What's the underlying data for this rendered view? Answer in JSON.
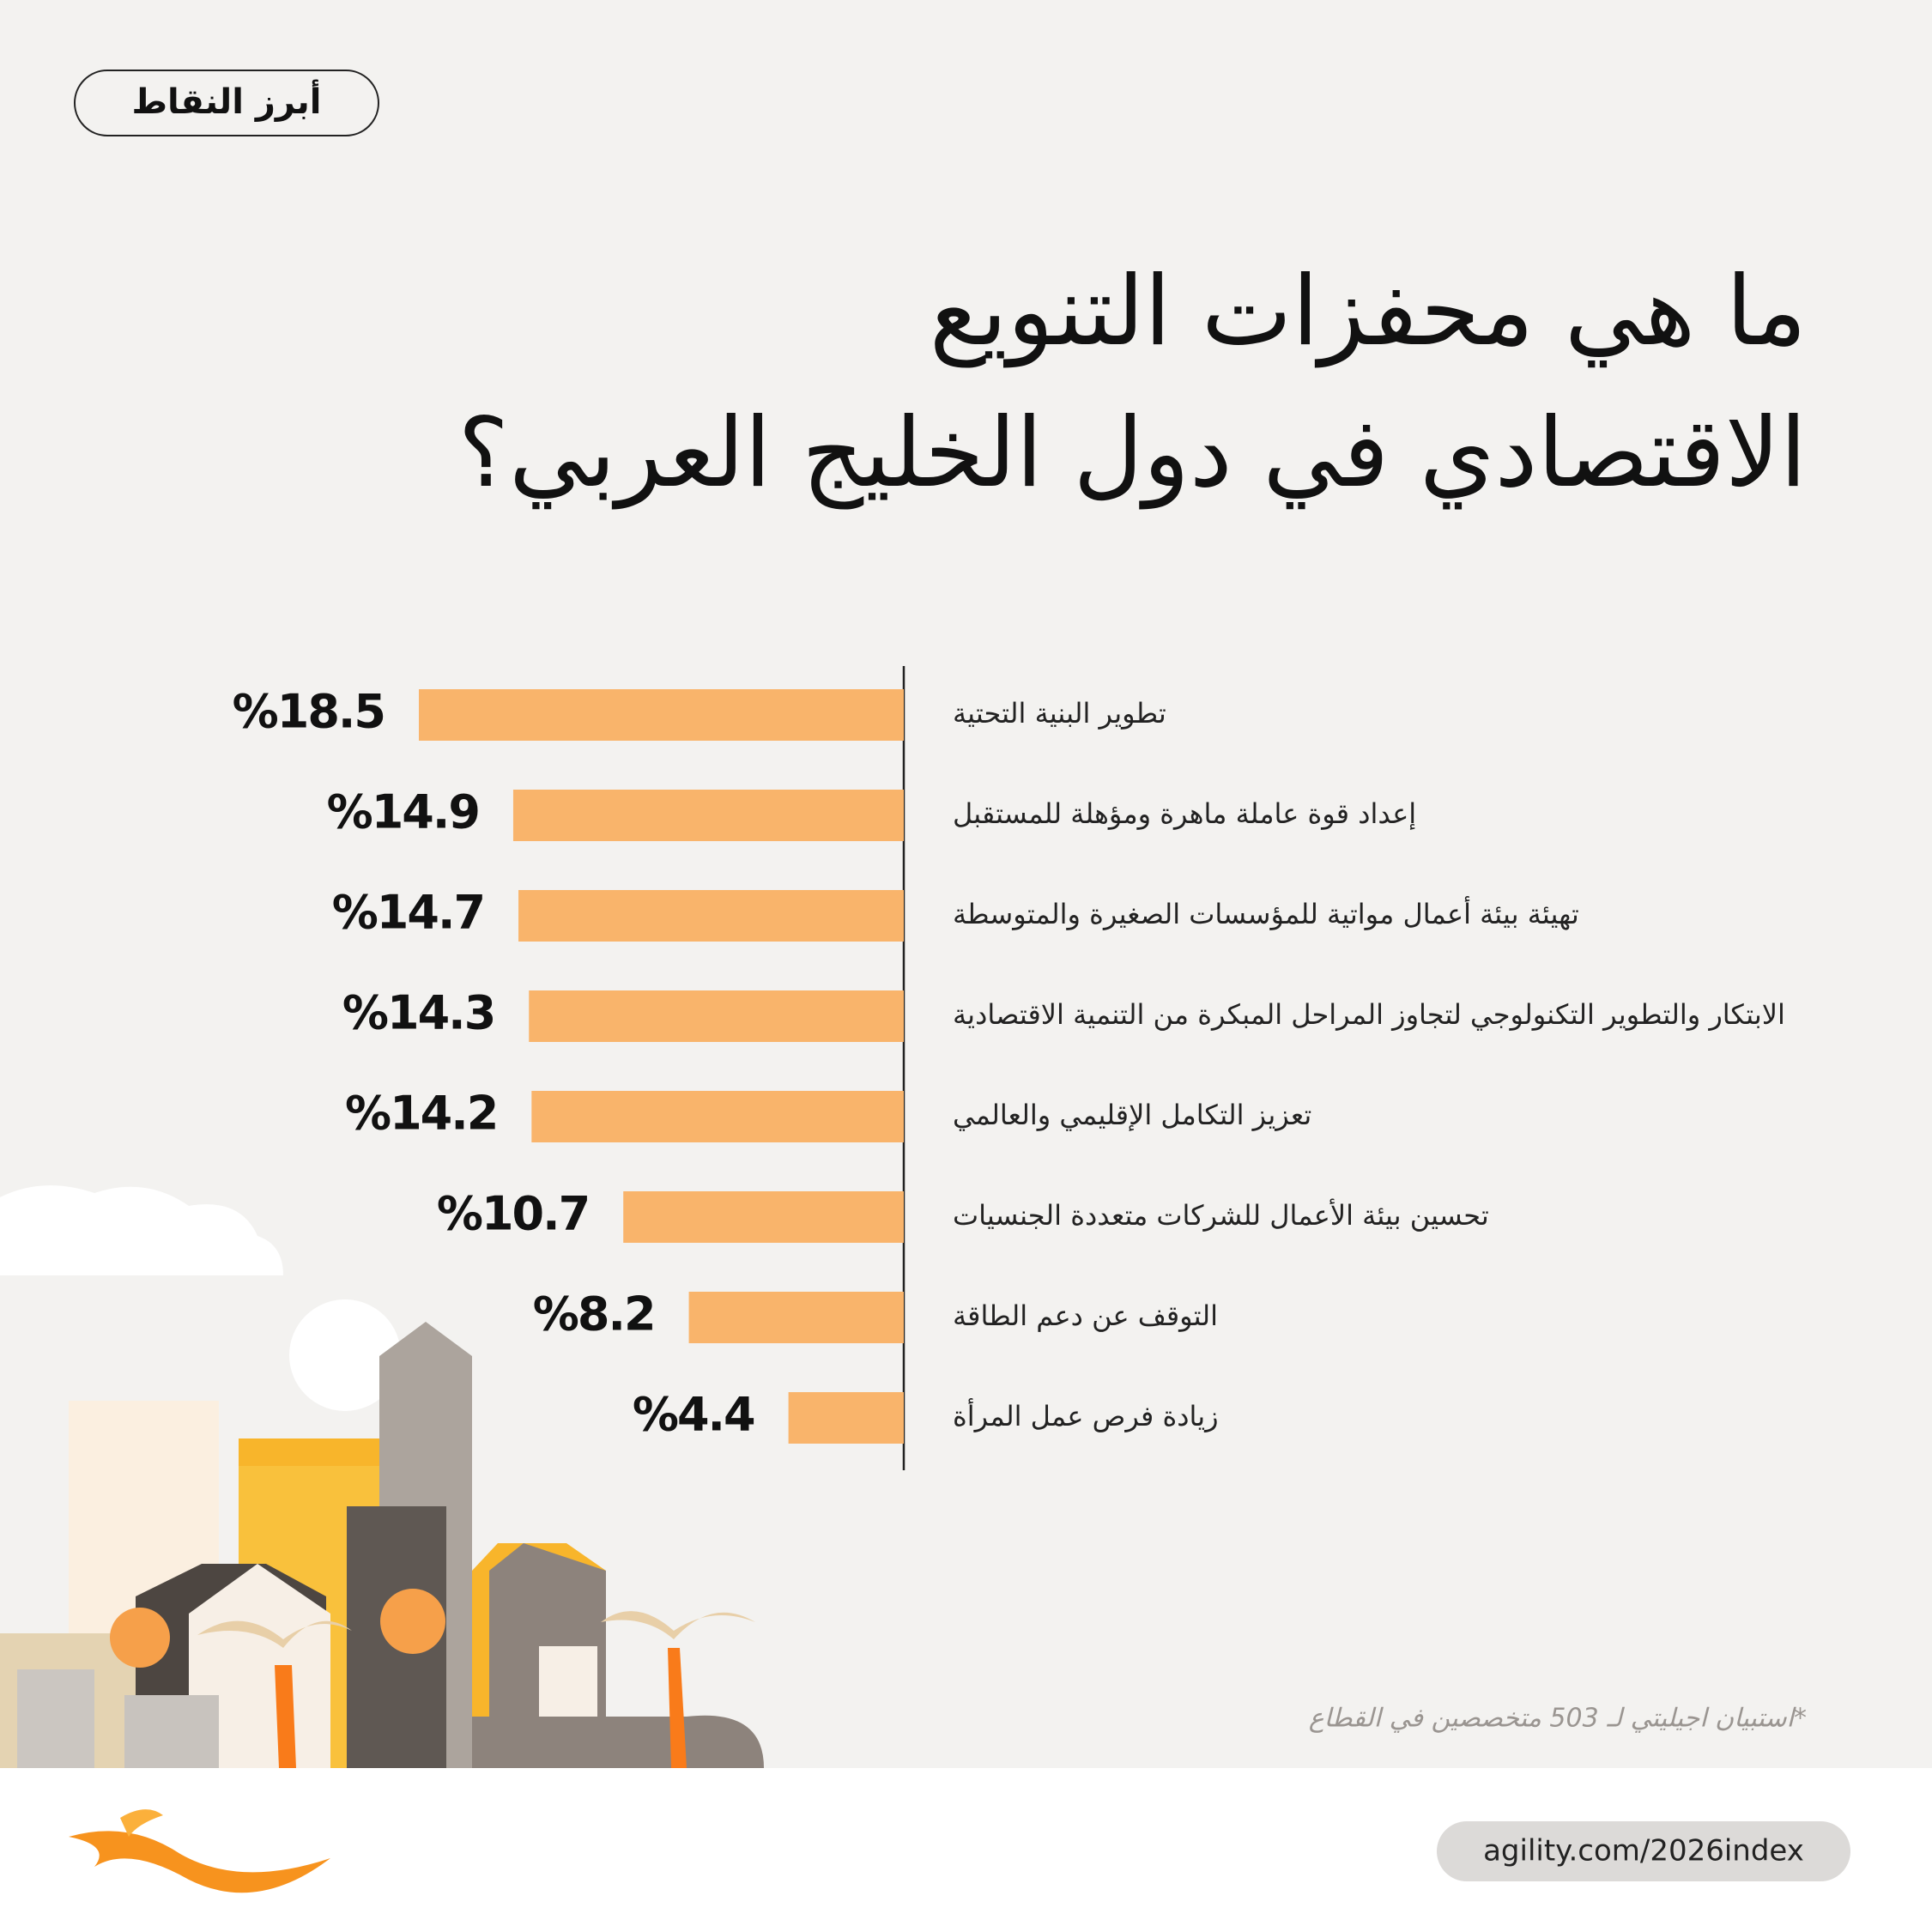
{
  "header": {
    "badge": "أبرز النقاط"
  },
  "chart_data": {
    "type": "hbar",
    "title": [
      "ما هي محفزات التنويع",
      "الاقتصادي في دول الخليج العربي؟"
    ],
    "categories": [
      "تطوير البنية التحتية",
      "إعداد قوة عاملة ماهرة ومؤهلة للمستقبل",
      "تهيئة بيئة أعمال مواتية للمؤسسات الصغيرة والمتوسطة",
      "الابتكار والتطوير التكنولوجي لتجاوز المراحل المبكرة من التنمية الاقتصادية",
      "تعزيز التكامل الإقليمي والعالمي",
      "تحسين بيئة الأعمال للشركات متعددة الجنسيات",
      "التوقف عن دعم الطاقة",
      "زيادة فرص عمل المرأة"
    ],
    "values": [
      18.5,
      14.9,
      14.7,
      14.3,
      14.2,
      10.7,
      8.2,
      4.4
    ],
    "value_labels": [
      "%18.5",
      "%14.9",
      "%14.7",
      "%14.3",
      "%14.2",
      "%10.7",
      "%8.2",
      "%4.4"
    ],
    "color": "#f9b46b"
  },
  "footer": {
    "note": "*استبيان اجيليتي لـ 503 متخصصين في القطاع",
    "url": "agility.com/2026index"
  }
}
